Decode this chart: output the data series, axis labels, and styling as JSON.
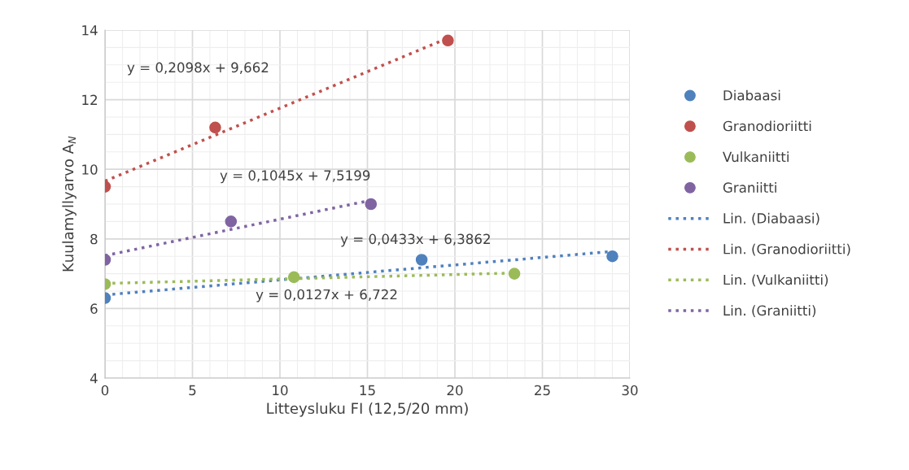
{
  "chart_data": {
    "type": "scatter",
    "xlabel": "Litteysluku FI (12,5/20 mm)",
    "ylabel": "Kuulamyllyarvo A$_{N}$",
    "xlim": [
      0,
      30
    ],
    "xticks": [
      0,
      5,
      10,
      15,
      20,
      25,
      30
    ],
    "ylim": [
      4,
      14
    ],
    "yticks": [
      4,
      6,
      8,
      10,
      12,
      14
    ],
    "grid": true,
    "legend": "right",
    "series": [
      {
        "name": "Diabaasi",
        "color": "#4f81bd",
        "marker": "circle",
        "x": [
          0,
          18.1,
          29
        ],
        "values": [
          6.3,
          7.4,
          7.5
        ]
      },
      {
        "name": "Granodioriitti",
        "color": "#c0504d",
        "marker": "circle",
        "x": [
          0,
          6.3,
          19.6
        ],
        "values": [
          9.5,
          11.2,
          13.7
        ]
      },
      {
        "name": "Vulkaniitti",
        "color": "#9bbb59",
        "marker": "circle",
        "x": [
          0,
          10.8,
          23.4
        ],
        "values": [
          6.7,
          6.9,
          7.0
        ]
      },
      {
        "name": "Graniitti",
        "color": "#8064a2",
        "marker": "circle",
        "x": [
          0,
          7.2,
          15.2
        ],
        "values": [
          7.4,
          8.5,
          9.0
        ]
      },
      {
        "name": "Lin. (Diabaasi)",
        "type": "line",
        "line_style": "dotted",
        "color": "#4f81bd",
        "x": [
          0,
          29
        ],
        "values": [
          6.39,
          7.64
        ]
      },
      {
        "name": "Lin. (Granodioriitti)",
        "type": "line",
        "line_style": "dotted",
        "color": "#c0504d",
        "x": [
          0,
          19.6
        ],
        "values": [
          9.66,
          13.77
        ]
      },
      {
        "name": "Lin. (Vulkaniitti)",
        "type": "line",
        "line_style": "dotted",
        "color": "#9bbb59",
        "x": [
          0,
          23.4
        ],
        "values": [
          6.72,
          7.02
        ]
      },
      {
        "name": "Lin. (Graniitti)",
        "type": "line",
        "line_style": "dotted",
        "color": "#8064a2",
        "x": [
          0,
          15.2
        ],
        "values": [
          7.52,
          9.11
        ]
      }
    ],
    "annotations": [
      "y = 0,0433x + 6,3862",
      "y = 0,2098x + 9,662",
      "y = 0,0127x + 6,722",
      "y = 0,1045x + 7,5199"
    ]
  }
}
